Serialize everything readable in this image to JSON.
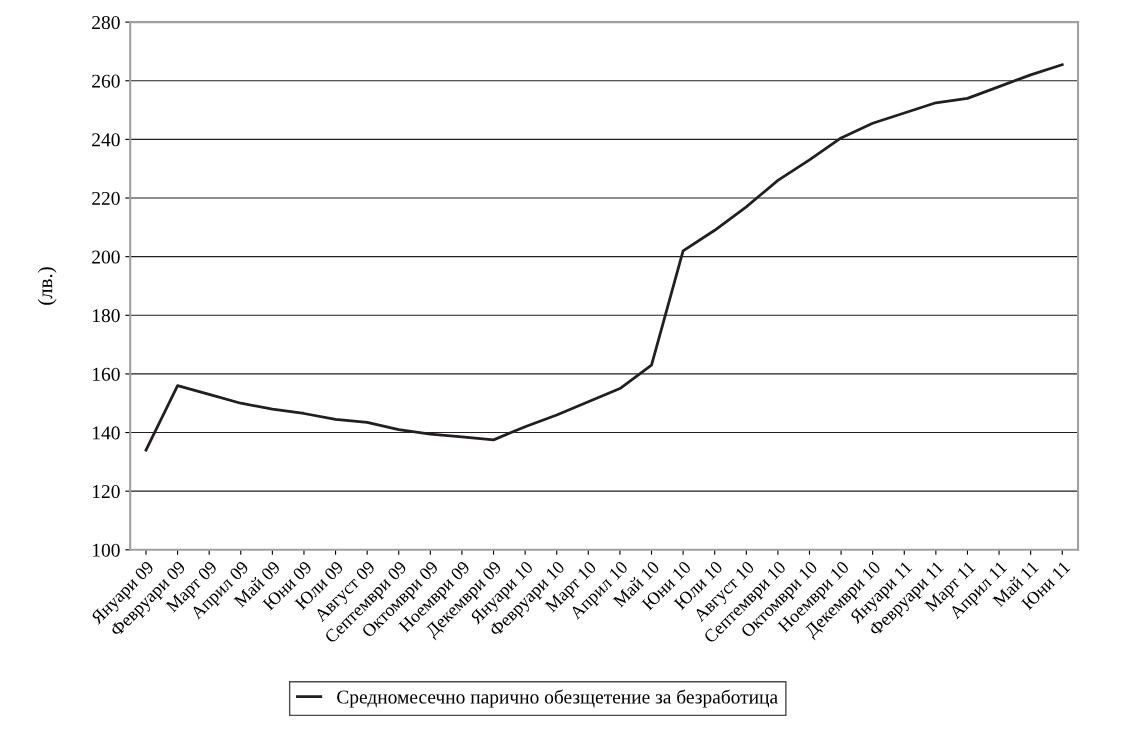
{
  "chart_data": {
    "type": "line",
    "ylabel": "(лв.)",
    "categories": [
      "Януари 09",
      "Февруари 09",
      "Март 09",
      "Април 09",
      "Май 09",
      "Юни 09",
      "Юли 09",
      "Август 09",
      "Септември 09",
      "Октомври 09",
      "Ноември 09",
      "Декември 09",
      "Януари 10",
      "Февруари 10",
      "Март 10",
      "Април 10",
      "Май 10",
      "Юни 10",
      "Юли 10",
      "Август 10",
      "Септември 10",
      "Октомври 10",
      "Ноември 10",
      "Декември 10",
      "Януари 11",
      "Февруари 11",
      "Март 11",
      "Април 11",
      "Май 11",
      "Юни 11"
    ],
    "series": [
      {
        "name": "Средномесечно парично обезщетение за безработица",
        "color": "#231f20",
        "values": [
          134,
          156,
          153,
          150,
          148,
          146.5,
          144.5,
          143.5,
          141,
          139.5,
          138.5,
          137.5,
          142,
          146,
          150.5,
          155,
          163,
          202,
          209,
          217,
          226,
          233,
          240.5,
          245.5,
          249,
          252.5,
          254,
          258,
          262,
          265.5
        ]
      }
    ],
    "ylim": [
      100,
      280
    ],
    "yticks": [
      100,
      120,
      140,
      160,
      180,
      200,
      220,
      240,
      260,
      280
    ],
    "grid": "y",
    "legend": "bottom",
    "marker": "none",
    "line_style": "solid"
  }
}
